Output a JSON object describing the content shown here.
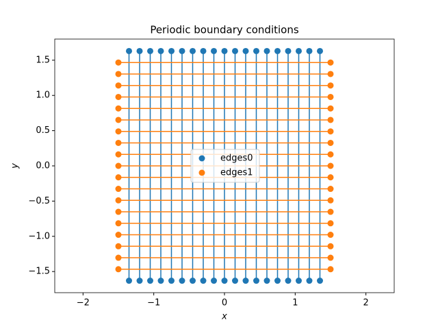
{
  "chart_data": {
    "type": "scatter",
    "title": "Periodic boundary conditions",
    "x_label": "x",
    "y_label": "y",
    "xlim": [
      -2.4,
      2.4
    ],
    "ylim": [
      -1.8,
      1.8
    ],
    "xticks": [
      {
        "value": -2,
        "label": "−2"
      },
      {
        "value": -1,
        "label": "−1"
      },
      0,
      1,
      2
    ],
    "yticks": [
      {
        "value": -1.5,
        "label": "−1.5"
      },
      {
        "value": -1,
        "label": "−1.0"
      },
      {
        "value": -0.5,
        "label": "−0.5"
      },
      {
        "value": 0,
        "label": "0.0"
      },
      0.5,
      {
        "value": 1,
        "label": "1.0"
      },
      1.5
    ],
    "legend": "center",
    "series": [
      {
        "name": "edges0",
        "color": "#1f77b4",
        "x": [
          -1.35,
          -1.35,
          -1.2,
          -1.2,
          -1.05,
          -1.05,
          -0.9,
          -0.9,
          -0.75,
          -0.75,
          -0.6,
          -0.6,
          -0.45,
          -0.45,
          -0.3,
          -0.3,
          -0.15,
          -0.15,
          0,
          0,
          0.15,
          0.15,
          0.3,
          0.3,
          0.45,
          0.45,
          0.6,
          0.6,
          0.75,
          0.75,
          0.9,
          0.9,
          1.05,
          1.05,
          1.2,
          1.2,
          1.35,
          1.35
        ],
        "y": [
          1.63,
          -1.63,
          1.63,
          -1.63,
          1.63,
          -1.63,
          1.63,
          -1.63,
          1.63,
          -1.63,
          1.63,
          -1.63,
          1.63,
          -1.63,
          1.63,
          -1.63,
          1.63,
          -1.63,
          1.63,
          -1.63,
          1.63,
          -1.63,
          1.63,
          -1.63,
          1.63,
          -1.63,
          1.63,
          -1.63,
          1.63,
          -1.63,
          1.63,
          -1.63,
          1.63,
          -1.63,
          1.63,
          -1.63,
          1.63,
          -1.63
        ]
      },
      {
        "name": "edges1",
        "color": "#ff7f0e",
        "x": [
          -1.5,
          1.5,
          -1.5,
          1.5,
          -1.5,
          1.5,
          -1.5,
          1.5,
          -1.5,
          1.5,
          -1.5,
          1.5,
          -1.5,
          1.5,
          -1.5,
          1.5,
          -1.5,
          1.5,
          -1.5,
          1.5,
          -1.5,
          1.5,
          -1.5,
          1.5,
          -1.5,
          1.5,
          -1.5,
          1.5,
          -1.5,
          1.5,
          -1.5,
          1.5,
          -1.5,
          1.5,
          -1.5,
          1.5,
          -1.5,
          1.5
        ],
        "y": [
          -1.467,
          -1.467,
          -1.304,
          -1.304,
          -1.141,
          -1.141,
          -0.978,
          -0.978,
          -0.815,
          -0.815,
          -0.652,
          -0.652,
          -0.489,
          -0.489,
          -0.326,
          -0.326,
          -0.163,
          -0.163,
          0,
          0,
          0.163,
          0.163,
          0.326,
          0.326,
          0.489,
          0.489,
          0.652,
          0.652,
          0.815,
          0.815,
          0.978,
          0.978,
          1.141,
          1.141,
          1.304,
          1.304,
          1.467,
          1.467
        ]
      }
    ]
  }
}
